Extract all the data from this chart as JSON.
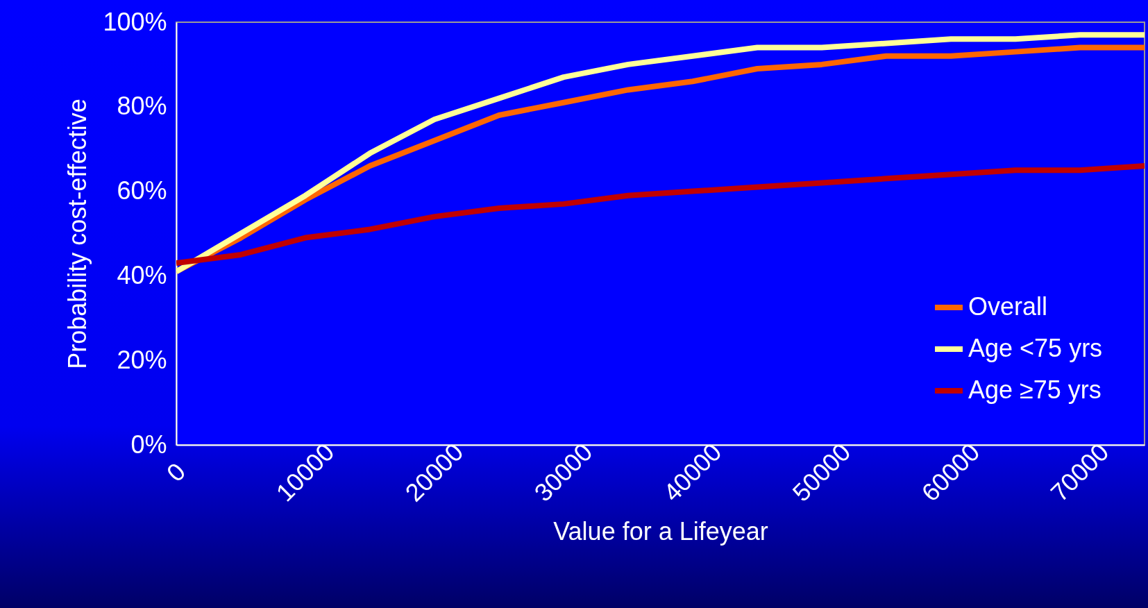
{
  "chart_data": {
    "type": "line",
    "xlabel": "Value for a Lifeyear",
    "ylabel": "Probability cost-effective",
    "x": [
      0,
      5000,
      10000,
      15000,
      20000,
      25000,
      30000,
      35000,
      40000,
      45000,
      50000,
      55000,
      60000,
      65000,
      70000,
      75000
    ],
    "series": [
      {
        "name": "Overall",
        "color": "#ff6600",
        "values": [
          41,
          49,
          58,
          66,
          72,
          78,
          81,
          84,
          86,
          89,
          90,
          92,
          92,
          93,
          94,
          94
        ]
      },
      {
        "name": "Age <75 yrs",
        "color": "#ffff99",
        "values": [
          41,
          50,
          59,
          69,
          77,
          82,
          87,
          90,
          92,
          94,
          94,
          95,
          96,
          96,
          97,
          97
        ]
      },
      {
        "name": "Age ≥75 yrs",
        "color": "#c00000",
        "values": [
          43,
          45,
          49,
          51,
          54,
          56,
          57,
          59,
          60,
          61,
          62,
          63,
          64,
          65,
          65,
          66
        ]
      }
    ],
    "xlim": [
      0,
      75000
    ],
    "xticks": [
      0,
      10000,
      20000,
      30000,
      40000,
      50000,
      60000,
      70000
    ],
    "ylim": [
      0,
      100
    ],
    "yticks": [
      {
        "value": 0,
        "label": "0%"
      },
      {
        "value": 20,
        "label": "20%"
      },
      {
        "value": 40,
        "label": "40%"
      },
      {
        "value": 60,
        "label": "60%"
      },
      {
        "value": 80,
        "label": "80%"
      },
      {
        "value": 100,
        "label": "100%"
      }
    ],
    "grid": false,
    "legend": "bottom right"
  }
}
